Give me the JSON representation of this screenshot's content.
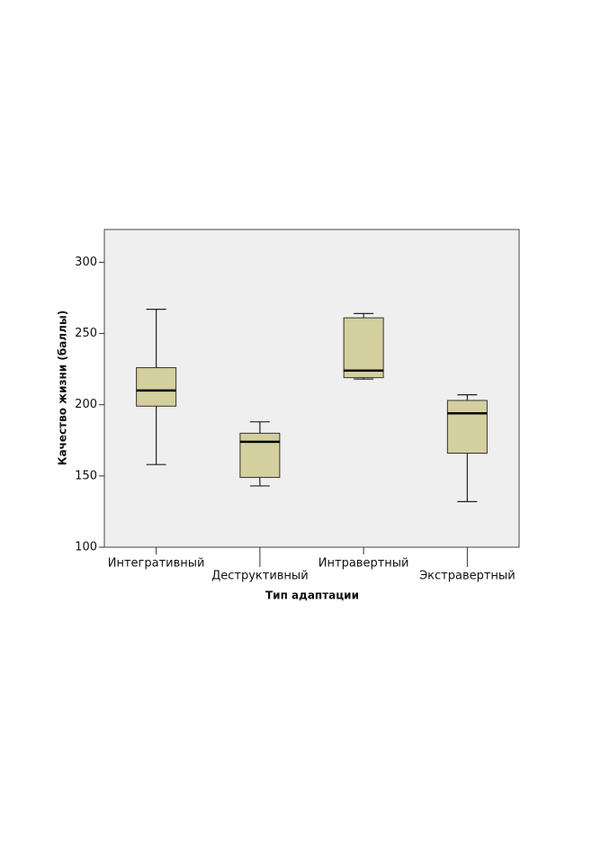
{
  "chart_data": {
    "type": "box",
    "xlabel": "Тип адаптации",
    "ylabel": "Качество жизни (баллы)",
    "categories": [
      "Интегративный",
      "Деструктивный",
      "Интравертный",
      "Экстравертный"
    ],
    "min": [
      158,
      143,
      218,
      132
    ],
    "q1": [
      199,
      149,
      219,
      166
    ],
    "median": [
      210,
      174,
      224,
      194
    ],
    "q3": [
      226,
      180,
      261,
      203
    ],
    "max": [
      267,
      188,
      264,
      207
    ],
    "color": "#d4cf9e",
    "ylim": [
      100,
      323
    ],
    "yticks": [
      100,
      150,
      200,
      250,
      300
    ]
  }
}
